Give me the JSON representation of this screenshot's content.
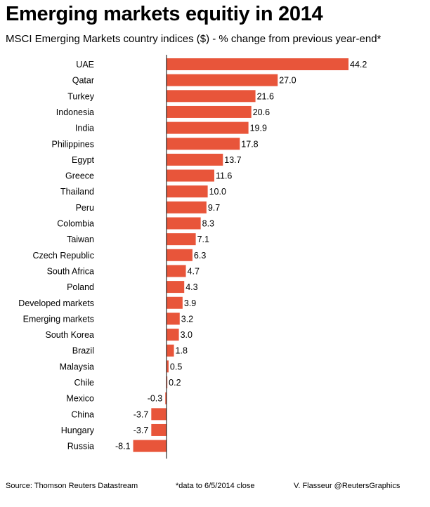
{
  "title": "Emerging markets equitiy in 2014",
  "subtitle": "MSCI Emerging Markets country indices ($) - % change from previous year-end*",
  "footer": {
    "source": "Source: Thomson Reuters Datastream",
    "note": "*data to 6/5/2014 close",
    "credit": "V. Flasseur @ReutersGraphics"
  },
  "chart_data": {
    "type": "bar",
    "orientation": "horizontal",
    "bar_color": "#e8553a",
    "categories": [
      "UAE",
      "Qatar",
      "Turkey",
      "Indonesia",
      "India",
      "Philippines",
      "Egypt",
      "Greece",
      "Thailand",
      "Peru",
      "Colombia",
      "Taiwan",
      "Czech Republic",
      "South Africa",
      "Poland",
      "Developed markets",
      "Emerging markets",
      "South Korea",
      "Brazil",
      "Malaysia",
      "Chile",
      "Mexico",
      "China",
      "Hungary",
      "Russia"
    ],
    "values": [
      44.2,
      27.0,
      21.6,
      20.6,
      19.9,
      17.8,
      13.7,
      11.6,
      10.0,
      9.7,
      8.3,
      7.1,
      6.3,
      4.7,
      4.3,
      3.9,
      3.2,
      3.0,
      1.8,
      0.5,
      0.2,
      -0.3,
      -3.7,
      -3.7,
      -8.1
    ],
    "value_labels": [
      "44.2",
      "27.0",
      "21.6",
      "20.6",
      "19.9",
      "17.8",
      "13.7",
      "11.6",
      "10.0",
      "9.7",
      "8.3",
      "7.1",
      "6.3",
      "4.7",
      "4.3",
      "3.9",
      "3.2",
      "3.0",
      "1.8",
      "0.5",
      "0.2",
      "-0.3",
      "-3.7",
      "-3.7",
      "-8.1"
    ],
    "grid": false,
    "legend": "none"
  }
}
